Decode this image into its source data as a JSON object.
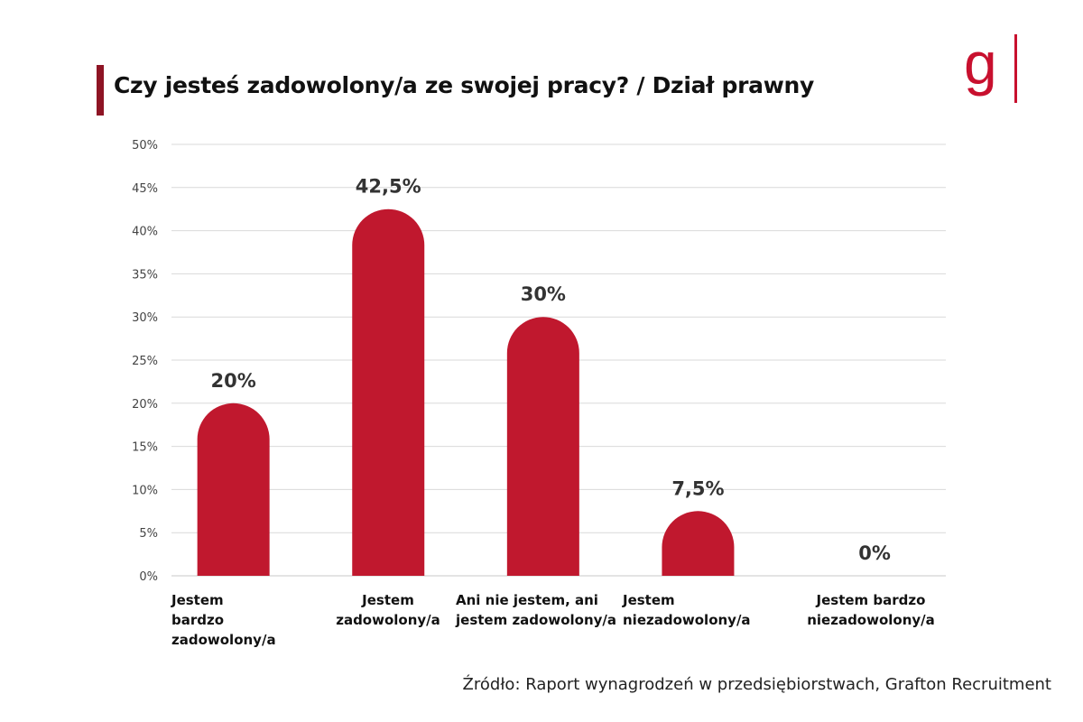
{
  "header": {
    "title": "Czy jesteś zadowolony/a ze swojej pracy? / Dział prawny",
    "logo_text": "g"
  },
  "colors": {
    "bar": "#c0182e",
    "accent": "#8e1424",
    "grid": "#d9d9d9"
  },
  "chart_data": {
    "type": "bar",
    "title": "Czy jesteś zadowolony/a ze swojej pracy? / Dział prawny",
    "categories": [
      "Jestem bardzo zadowolony/a",
      "Jestem zadowolony/a",
      "Ani nie jestem, ani jestem zadowolony/a",
      "Jestem niezadowolony/a",
      "Jestem bardzo niezadowolony/a"
    ],
    "values": [
      20,
      42.5,
      30,
      7.5,
      0
    ],
    "value_labels": [
      "20%",
      "42,5%",
      "30%",
      "7,5%",
      "0%"
    ],
    "y_ticks": [
      "0%",
      "5%",
      "10%",
      "15%",
      "20%",
      "25%",
      "30%",
      "35%",
      "40%",
      "45%",
      "50%"
    ],
    "ylim": [
      0,
      50
    ],
    "grid": true,
    "xlabel": "",
    "ylabel": ""
  },
  "category_labels": [
    [
      "Jestem",
      "bardzo",
      "zadowolony/a"
    ],
    [
      "Jestem",
      "zadowolony/a"
    ],
    [
      "Ani nie jestem, ani",
      "jestem zadowolony/a"
    ],
    [
      "Jestem",
      "niezadowolony/a"
    ],
    [
      "Jestem bardzo",
      "niezadowolony/a"
    ]
  ],
  "footer": {
    "source": "Źródło: Raport wynagrodzeń w  przedsiębiorstwach, Grafton Recruitment"
  }
}
